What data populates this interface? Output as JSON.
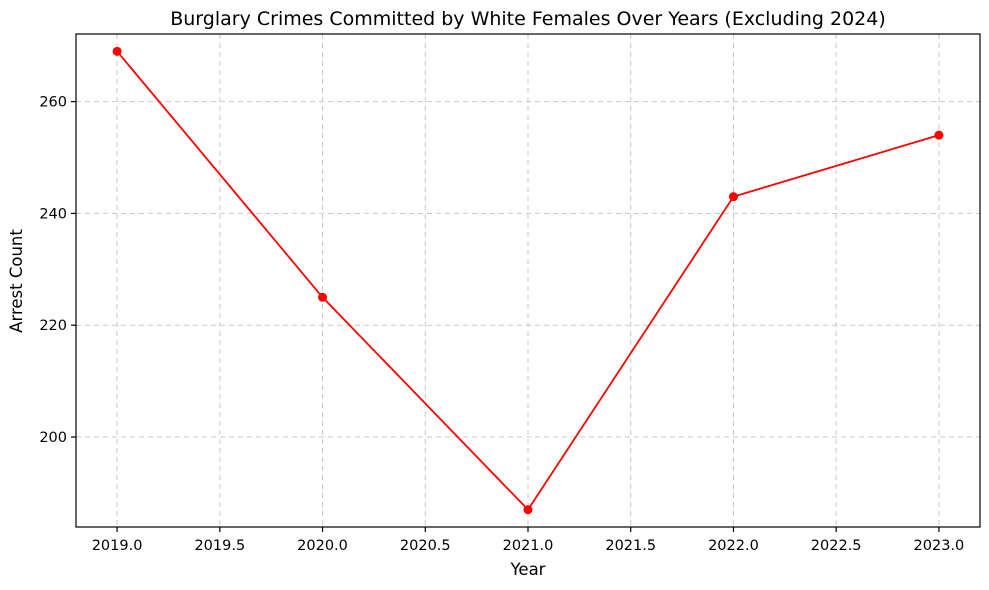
{
  "chart_data": {
    "type": "line",
    "title": "Burglary Crimes Committed by White Females Over Years (Excluding 2024)",
    "xlabel": "Year",
    "ylabel": "Arrest Count",
    "x": [
      2019,
      2020,
      2021,
      2022,
      2023
    ],
    "series": [
      {
        "values": [
          269,
          225,
          187,
          243,
          254
        ],
        "color": "#ff0000",
        "marker": "circle"
      }
    ],
    "xlim": [
      2018.8,
      2023.2
    ],
    "ylim": [
      183.9,
      272.1
    ],
    "xticks": [
      "2019.0",
      "2019.5",
      "2020.0",
      "2020.5",
      "2021.0",
      "2021.5",
      "2022.0",
      "2022.5",
      "2023.0"
    ],
    "xtick_values": [
      2019.0,
      2019.5,
      2020.0,
      2020.5,
      2021.0,
      2021.5,
      2022.0,
      2022.5,
      2023.0
    ],
    "yticks": [
      "200",
      "220",
      "240",
      "260"
    ],
    "ytick_values": [
      200,
      220,
      240,
      260
    ],
    "grid": true,
    "grid_style": "dashed"
  }
}
